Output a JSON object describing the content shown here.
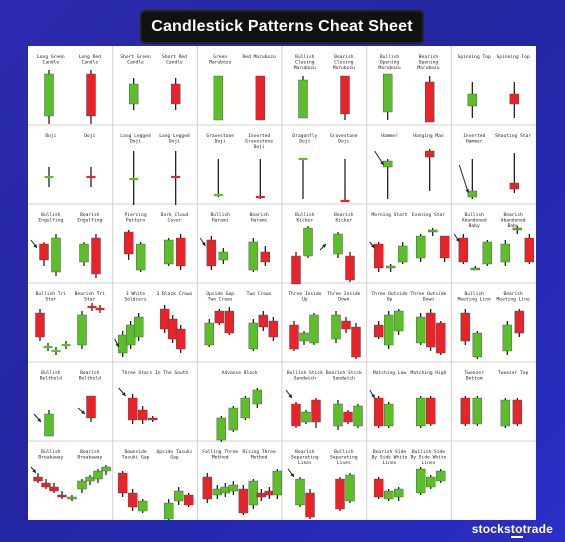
{
  "title": "Candlestick Patterns Cheat Sheet",
  "brand": {
    "text": "stocks",
    "accent": "to",
    "suffix": "trade"
  },
  "colors": {
    "bull": "#5cbf2a",
    "bear": "#e8232a",
    "line": "#222222",
    "grid": "#d0d0d0",
    "background": "#2a2fa0"
  },
  "rows": [
    [
      {
        "labels": [
          "Long Green Candle",
          "Long Red Candle"
        ]
      },
      {
        "labels": [
          "Short Green Candle",
          "Short Red Candle"
        ]
      },
      {
        "labels": [
          "Green Marubozu",
          "Red Marubozu"
        ]
      },
      {
        "labels": [
          "Bullish Closing Marubozu",
          "Bearish Closing Marubozu"
        ]
      },
      {
        "labels": [
          "Bullish Opening Marubozu",
          "Bearish Opening Marubozu"
        ]
      },
      {
        "labels": [
          "Spinning Top",
          "Spinning Top"
        ]
      }
    ],
    [
      {
        "labels": [
          "Doji",
          "Doji"
        ]
      },
      {
        "labels": [
          "Long Legged Doji",
          "Long Legged Doji"
        ]
      },
      {
        "labels": [
          "Gravestone Doji",
          "Inverted Gravestone Doji"
        ]
      },
      {
        "labels": [
          "Dragonfly Doji",
          "Gravestone Doji"
        ]
      },
      {
        "labels": [
          "Hammer",
          "Hanging Man"
        ]
      },
      {
        "labels": [
          "Inverted Hammer",
          "Shooting Star"
        ]
      }
    ],
    [
      {
        "labels": [
          "Bullish Engulfing",
          "Bearish Engulfing"
        ]
      },
      {
        "labels": [
          "Piercing Pattern",
          "Dark Cloud Cover"
        ]
      },
      {
        "labels": [
          "Bullish Harami",
          "Bearish Harami"
        ]
      },
      {
        "labels": [
          "Bullish Kicker",
          "Bearish Kicker"
        ]
      },
      {
        "labels": [
          "Morning Start",
          "Evening Star"
        ]
      },
      {
        "labels": [
          "Bullish Abandoned Baby",
          "Bearish Abandoned Baby"
        ]
      }
    ],
    [
      {
        "labels": [
          "Bullish Tri Star",
          "Bearish Tri Star"
        ]
      },
      {
        "labels": [
          "3 White Soldiers",
          "3 Black Crows"
        ]
      },
      {
        "labels": [
          "Upside Gap Two Crows",
          "Two Crows"
        ]
      },
      {
        "labels": [
          "Three Inside Up",
          "Three Inside Down"
        ]
      },
      {
        "labels": [
          "Three Outside Up",
          "Three Outside Down"
        ]
      },
      {
        "labels": [
          "Bullish Meeting Line",
          "Bearish Meeting Line"
        ]
      }
    ],
    [
      {
        "labels": [
          "Bullish Belthold",
          "Bearish Belthold"
        ]
      },
      {
        "labels": [
          "Three Stars In The South"
        ]
      },
      {
        "labels": [
          "Advance Block"
        ]
      },
      {
        "labels": [
          "Bullish Stick Sandwich",
          "Bearish Stick Sandwich"
        ]
      },
      {
        "labels": [
          "Matching Low",
          "Matching High"
        ]
      },
      {
        "labels": [
          "Tweezer Bottom",
          "Tweezer Top"
        ]
      }
    ],
    [
      {
        "labels": [
          "Bullish Breakaway",
          "Bearish Breakaway"
        ]
      },
      {
        "labels": [
          "Downside Tasuki Gap",
          "Upside Tasuki Gap"
        ]
      },
      {
        "labels": [
          "Falling Three Method",
          "Rising Three Method"
        ]
      },
      {
        "labels": [
          "Bearish Separating Lines",
          "Bullish Separating Lines"
        ]
      },
      {
        "labels": [
          "Bearish Side By Side White Lines",
          "Bullish Side By Side White Lines"
        ]
      },
      {
        "labels": []
      }
    ]
  ]
}
